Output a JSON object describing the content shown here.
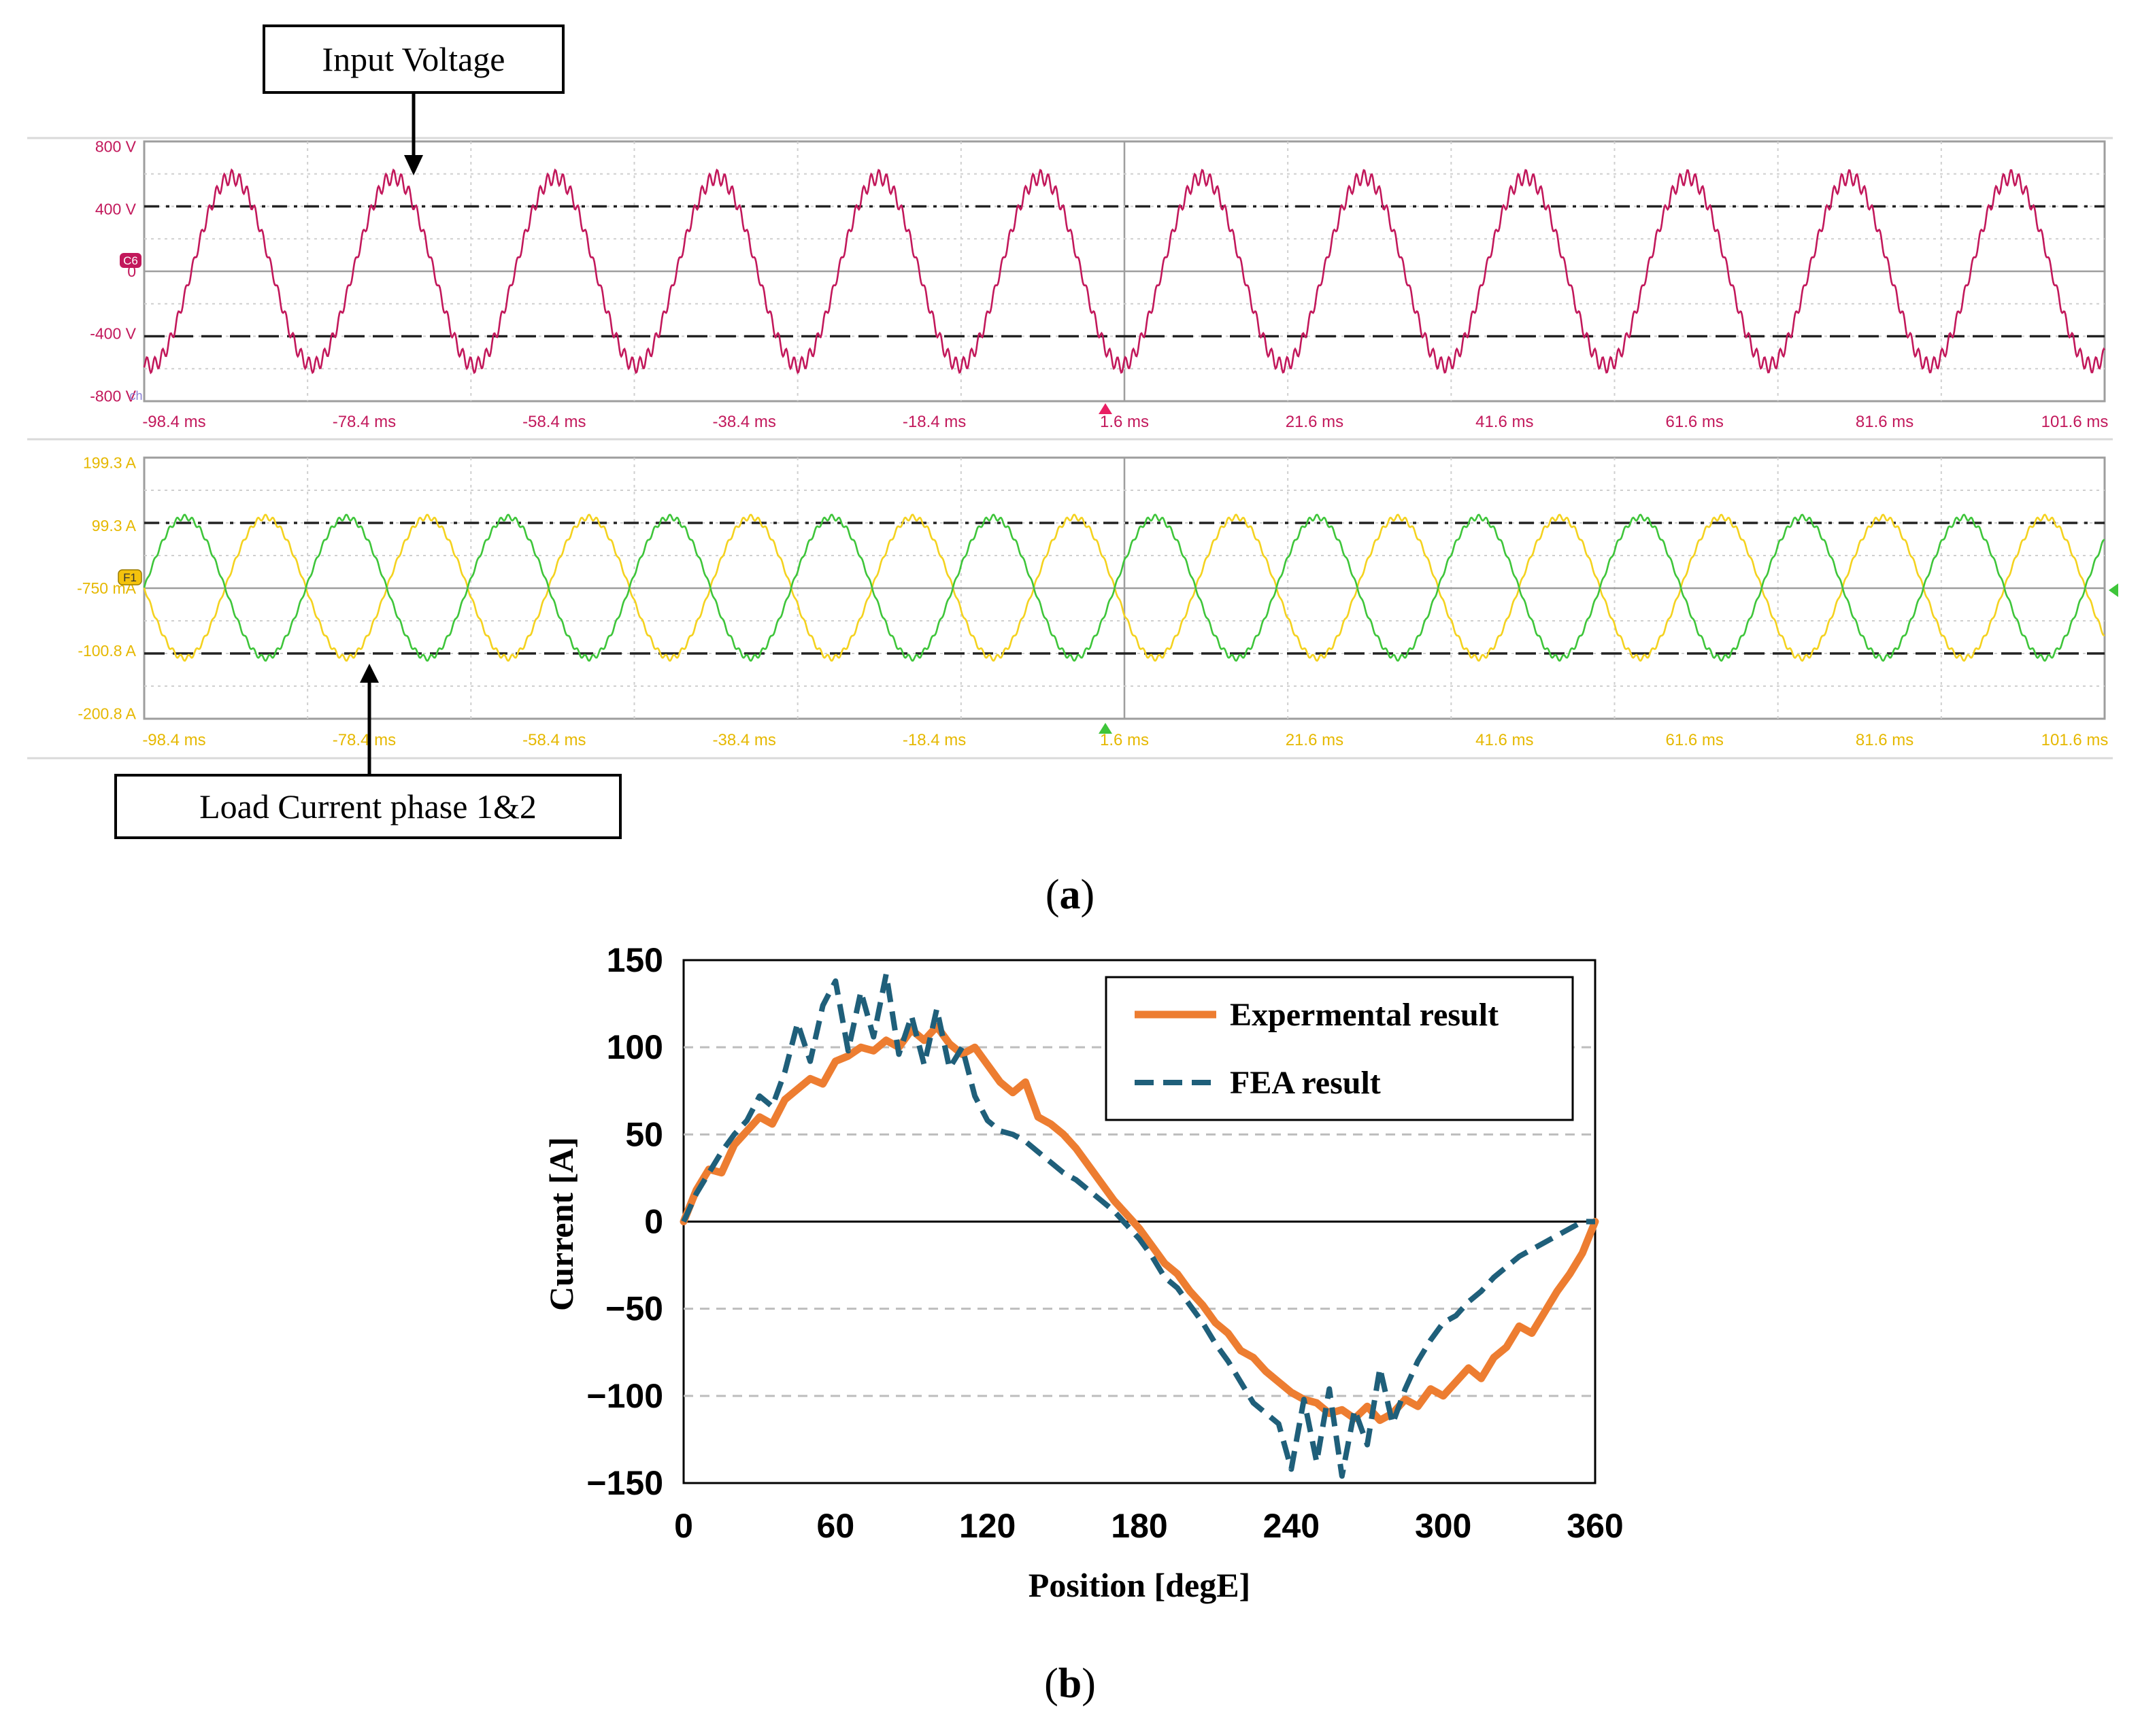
{
  "panel_a": {
    "caption": "(a)",
    "caption_letter": "a",
    "annotation_voltage": "Input Voltage",
    "annotation_current": "Load Current phase 1&2",
    "voltage_marker": "C6",
    "current_marker": "F1",
    "voltage_ch_icon": "ch",
    "colors": {
      "voltage": "#c2185b",
      "phase1": "#f4d21f",
      "phase2": "#3ec53a",
      "current_labels": "#e6b800",
      "grid": "#cfcfcf"
    }
  },
  "panel_b": {
    "caption": "(b)",
    "caption_letter": "b",
    "colors": {
      "experimental": "#ed7d31",
      "fea": "#1f5f7a"
    }
  },
  "chart_data": [
    {
      "type": "line",
      "title": "Input Voltage",
      "xlabel": "",
      "ylabel": "",
      "x_ticks": [
        "-98.4 ms",
        "-78.4 ms",
        "-58.4 ms",
        "-38.4 ms",
        "-18.4 ms",
        "1.6 ms",
        "21.6 ms",
        "41.6 ms",
        "61.6 ms",
        "81.6 ms",
        "101.6 ms"
      ],
      "y_ticks": [
        "800 V",
        "400 V",
        "0",
        "-400 V",
        "-800 V"
      ],
      "xlim": [
        -100,
        102
      ],
      "ylim": [
        -800,
        800
      ],
      "reference_lines": [
        400,
        -400
      ],
      "series": [
        {
          "name": "Input Voltage",
          "waveform": "sine",
          "amplitude": 580,
          "frequency_hz": 60,
          "phase_deg": -105,
          "ripple": 45,
          "color": "#c2185b"
        }
      ]
    },
    {
      "type": "line",
      "title": "Load Current phase 1&2",
      "xlabel": "",
      "ylabel": "",
      "x_ticks": [
        "-98.4 ms",
        "-78.4 ms",
        "-58.4 ms",
        "-38.4 ms",
        "-18.4 ms",
        "1.6 ms",
        "21.6 ms",
        "41.6 ms",
        "61.6 ms",
        "81.6 ms",
        "101.6 ms"
      ],
      "y_ticks": [
        "199.3 A",
        "99.3 A",
        "-750 mA",
        "-100.8 A",
        "-200.8 A"
      ],
      "xlim": [
        -100,
        102
      ],
      "ylim": [
        -200.8,
        199.3
      ],
      "reference_lines": [
        99.3,
        -100.8
      ],
      "series": [
        {
          "name": "Phase 1",
          "waveform": "sine",
          "amplitude": 108,
          "frequency_hz": 60,
          "phase_deg": 180,
          "ripple": 4,
          "color": "#f4d21f"
        },
        {
          "name": "Phase 2",
          "waveform": "sine",
          "amplitude": 108,
          "frequency_hz": 60,
          "phase_deg": 0,
          "ripple": 4,
          "color": "#3ec53a"
        }
      ]
    },
    {
      "type": "line",
      "title": "",
      "xlabel": "Position [degE]",
      "ylabel": "Current  [A]",
      "xlim": [
        0,
        360
      ],
      "ylim": [
        -150,
        150
      ],
      "x_ticks": [
        0,
        60,
        120,
        180,
        240,
        300,
        360
      ],
      "y_ticks": [
        150,
        100,
        50,
        0,
        -50,
        -100,
        -150
      ],
      "y_tick_labels": [
        "150",
        "100",
        "50",
        "0",
        "−50",
        "−100",
        "−150"
      ],
      "grid": "horizontal dashed",
      "legend": "top-right",
      "series": [
        {
          "name": "Expermental result",
          "x": [
            0,
            5,
            10,
            15,
            20,
            25,
            30,
            35,
            40,
            45,
            50,
            55,
            60,
            65,
            70,
            75,
            80,
            85,
            90,
            95,
            100,
            105,
            110,
            115,
            120,
            125,
            130,
            135,
            140,
            145,
            150,
            155,
            160,
            165,
            170,
            175,
            180,
            185,
            190,
            195,
            200,
            205,
            210,
            215,
            220,
            225,
            230,
            235,
            240,
            245,
            250,
            255,
            260,
            265,
            270,
            275,
            280,
            285,
            290,
            295,
            300,
            305,
            310,
            315,
            320,
            325,
            330,
            335,
            340,
            345,
            350,
            355,
            360
          ],
          "y": [
            0,
            18,
            30,
            28,
            44,
            52,
            60,
            56,
            70,
            76,
            82,
            79,
            92,
            95,
            100,
            98,
            104,
            100,
            110,
            104,
            112,
            102,
            96,
            100,
            90,
            80,
            74,
            80,
            60,
            56,
            50,
            42,
            32,
            22,
            12,
            4,
            -4,
            -14,
            -24,
            -30,
            -40,
            -48,
            -58,
            -64,
            -74,
            -78,
            -86,
            -92,
            -98,
            -102,
            -104,
            -110,
            -108,
            -113,
            -106,
            -114,
            -110,
            -102,
            -106,
            -96,
            -100,
            -92,
            -84,
            -90,
            -78,
            -72,
            -60,
            -64,
            -52,
            -40,
            -30,
            -18,
            0
          ],
          "color": "#ed7d31"
        },
        {
          "name": "FEA result",
          "x": [
            0,
            5,
            10,
            15,
            20,
            25,
            30,
            35,
            40,
            45,
            50,
            55,
            60,
            65,
            70,
            75,
            80,
            85,
            90,
            95,
            100,
            105,
            110,
            115,
            120,
            125,
            130,
            135,
            140,
            145,
            150,
            155,
            160,
            165,
            170,
            175,
            180,
            185,
            190,
            195,
            200,
            205,
            210,
            215,
            220,
            225,
            230,
            235,
            240,
            245,
            250,
            255,
            260,
            265,
            270,
            275,
            280,
            285,
            290,
            295,
            300,
            305,
            310,
            315,
            320,
            325,
            330,
            335,
            340,
            345,
            350,
            355,
            360
          ],
          "y": [
            0,
            16,
            28,
            40,
            50,
            58,
            72,
            66,
            86,
            114,
            92,
            124,
            138,
            98,
            132,
            106,
            142,
            96,
            118,
            90,
            122,
            88,
            100,
            72,
            58,
            52,
            50,
            46,
            40,
            34,
            28,
            24,
            18,
            12,
            6,
            -2,
            -10,
            -20,
            -32,
            -38,
            -48,
            -58,
            -70,
            -80,
            -92,
            -104,
            -110,
            -116,
            -142,
            -102,
            -138,
            -96,
            -146,
            -108,
            -128,
            -84,
            -116,
            -96,
            -80,
            -68,
            -58,
            -54,
            -46,
            -40,
            -32,
            -26,
            -20,
            -16,
            -12,
            -8,
            -4,
            0,
            0
          ],
          "color": "#1f5f7a"
        }
      ]
    }
  ]
}
